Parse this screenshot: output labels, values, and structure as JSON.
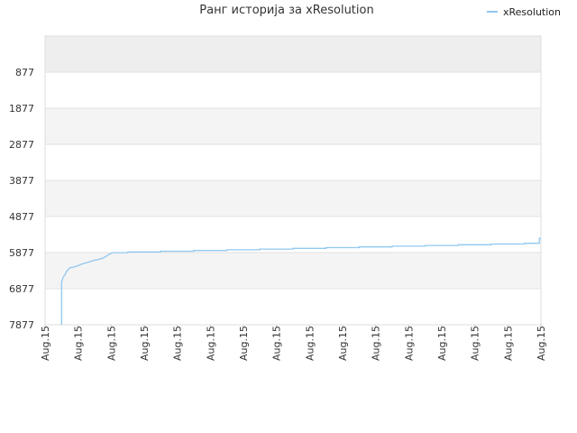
{
  "chart_data": {
    "type": "line",
    "title": "Ранг историја за xResolution",
    "xlabel": "",
    "ylabel": "",
    "y_inverted": true,
    "ylim": [
      -123,
      7877
    ],
    "y_ticks": [
      877,
      1877,
      2877,
      3877,
      4877,
      5877,
      6877,
      7877
    ],
    "x_tick_labels": [
      "Aug.15",
      "Aug.15",
      "Aug.15",
      "Aug.15",
      "Aug.15",
      "Aug.15",
      "Aug.15",
      "Aug.15",
      "Aug.15",
      "Aug.15",
      "Aug.15",
      "Aug.15",
      "Aug.15",
      "Aug.15",
      "Aug.15",
      "Aug.15"
    ],
    "grid": true,
    "legend_position": "top-right",
    "series": [
      {
        "name": "xResolution",
        "color": "#90c8f0",
        "x": [
          0.5,
          0.5,
          0.5,
          0.55,
          0.6,
          0.65,
          0.75,
          0.85,
          1.0,
          1.1,
          1.2,
          1.35,
          1.5,
          1.65,
          1.75,
          1.85,
          1.95,
          2.05,
          2.2,
          2.45,
          2.5,
          2.5,
          3.45,
          3.5,
          3.5,
          4.45,
          4.5,
          4.5,
          5.45,
          5.5,
          5.5,
          6.45,
          6.5,
          6.5,
          7.45,
          7.5,
          7.5,
          8.45,
          8.5,
          8.5,
          9.45,
          9.5,
          9.5,
          10.45,
          10.5,
          10.5,
          11.45,
          11.5,
          11.5,
          12.45,
          12.5,
          12.5,
          13.45,
          13.5,
          13.5,
          14.45,
          14.5,
          14.5,
          14.95,
          14.95,
          15.0
        ],
        "y": [
          7877,
          6900,
          6700,
          6550,
          6500,
          6400,
          6300,
          6280,
          6240,
          6200,
          6170,
          6130,
          6090,
          6060,
          6030,
          5980,
          5920,
          5880,
          5880,
          5880,
          5880,
          5860,
          5860,
          5860,
          5840,
          5840,
          5840,
          5820,
          5820,
          5820,
          5800,
          5800,
          5800,
          5780,
          5780,
          5780,
          5760,
          5760,
          5760,
          5740,
          5740,
          5740,
          5720,
          5720,
          5720,
          5700,
          5700,
          5700,
          5680,
          5680,
          5680,
          5660,
          5660,
          5660,
          5640,
          5640,
          5640,
          5620,
          5620,
          5480,
          5480
        ]
      }
    ]
  }
}
